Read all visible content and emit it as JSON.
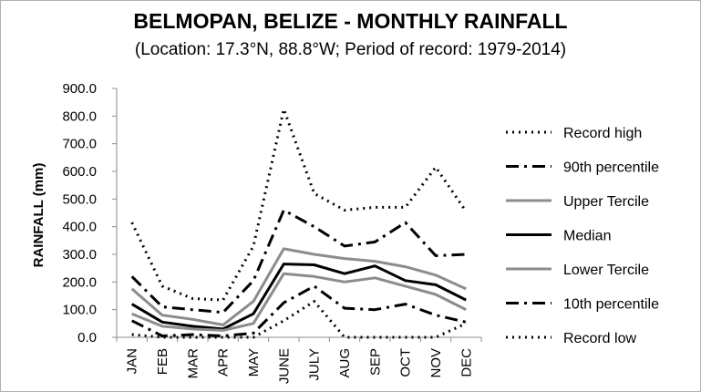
{
  "chart_data": {
    "type": "line",
    "title": "BELMOPAN, BELIZE - MONTHLY RAINFALL",
    "subtitle": "(Location: 17.3°N, 88.8°W; Period of record: 1979-2014)",
    "ylabel": "RAINFALL (mm)",
    "xlabel": "",
    "ylim": [
      0,
      900
    ],
    "ytick_labels": [
      "0.0",
      "100.0",
      "200.0",
      "300.0",
      "400.0",
      "500.0",
      "600.0",
      "700.0",
      "800.0",
      "900.0"
    ],
    "categories": [
      "JAN",
      "FEB",
      "MAR",
      "APR",
      "MAY",
      "JUNE",
      "JULY",
      "AUG",
      "SEP",
      "OCT",
      "NOV",
      "DEC"
    ],
    "grid": false,
    "legend_position": "right",
    "series": [
      {
        "name": "Record high",
        "style": "dotted",
        "color": "#000000",
        "width": 3,
        "values": [
          415,
          185,
          140,
          135,
          330,
          825,
          520,
          460,
          470,
          470,
          615,
          455
        ]
      },
      {
        "name": "90th percentile",
        "style": "dashdot",
        "color": "#000000",
        "width": 3,
        "values": [
          220,
          110,
          100,
          90,
          205,
          460,
          400,
          330,
          345,
          415,
          295,
          300
        ]
      },
      {
        "name": "Upper Tercile",
        "style": "solid",
        "color": "#8c8c8c",
        "width": 3,
        "values": [
          175,
          80,
          65,
          45,
          130,
          320,
          300,
          285,
          275,
          255,
          225,
          175
        ]
      },
      {
        "name": "Median",
        "style": "solid",
        "color": "#000000",
        "width": 3,
        "values": [
          120,
          55,
          40,
          30,
          85,
          265,
          262,
          230,
          258,
          205,
          190,
          135
        ]
      },
      {
        "name": "Lower Tercile",
        "style": "solid",
        "color": "#8c8c8c",
        "width": 3,
        "values": [
          85,
          40,
          30,
          25,
          50,
          230,
          220,
          200,
          215,
          185,
          155,
          100
        ]
      },
      {
        "name": "10th percentile",
        "style": "dashdot",
        "color": "#000000",
        "width": 3,
        "values": [
          60,
          5,
          10,
          5,
          15,
          125,
          185,
          105,
          100,
          120,
          80,
          55
        ]
      },
      {
        "name": "Record low",
        "style": "dotted",
        "color": "#000000",
        "width": 3,
        "values": [
          10,
          0,
          0,
          0,
          0,
          60,
          130,
          0,
          0,
          0,
          0,
          50
        ]
      }
    ]
  }
}
